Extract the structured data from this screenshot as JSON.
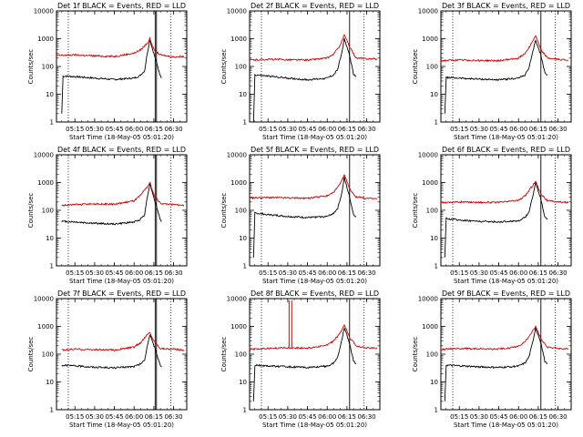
{
  "chart_data": [
    {
      "type": "line",
      "title": "Det 1f BLACK = Events, RED = LLD",
      "xlabel": "Start Time (18-May-05 05:01:20)",
      "ylabel": "Counts/sec",
      "yscale": "log",
      "ylim": [
        1,
        10000
      ],
      "xlim": [
        "05:01",
        "06:40"
      ],
      "x_ticks": [
        "05:15",
        "05:30",
        "05:45",
        "06:00",
        "06:15",
        "06:30"
      ],
      "y_ticks": [
        "1",
        "10",
        "100",
        "1000",
        "10000"
      ],
      "events_start": "05:05",
      "vlines_dotted": [
        "05:10",
        "06:28"
      ],
      "vlines_solid": [
        "06:16",
        "06:17"
      ],
      "grid": false,
      "legend": "none",
      "series": [
        {
          "name": "BLACK",
          "color": "#000000",
          "x": [
            "05:05",
            "05:06",
            "05:15",
            "05:30",
            "05:45",
            "06:00",
            "06:04",
            "06:08",
            "06:10",
            "06:12",
            "06:16",
            "06:20",
            "06:21"
          ],
          "values": [
            2,
            45,
            43,
            38,
            34,
            38,
            45,
            70,
            300,
            900,
            200,
            45,
            40
          ]
        },
        {
          "name": "RED",
          "color": "#cc0000",
          "x": [
            "05:01",
            "05:15",
            "05:30",
            "05:45",
            "06:00",
            "06:05",
            "06:10",
            "06:12",
            "06:15",
            "06:20",
            "06:30",
            "06:38"
          ],
          "values": [
            250,
            260,
            240,
            230,
            300,
            400,
            700,
            1000,
            400,
            260,
            220,
            230
          ]
        }
      ]
    },
    {
      "type": "line",
      "title": "Det 2f BLACK = Events, RED = LLD",
      "xlabel": "Start Time (18-May-05 05:01:20)",
      "ylabel": "Counts/sec",
      "yscale": "log",
      "ylim": [
        1,
        10000
      ],
      "xlim": [
        "05:01",
        "06:40"
      ],
      "x_ticks": [
        "05:15",
        "05:30",
        "05:45",
        "06:00",
        "06:15",
        "06:30"
      ],
      "y_ticks": [
        "1",
        "10",
        "100",
        "1000",
        "10000"
      ],
      "events_start": "05:04",
      "vlines_dotted": [
        "05:10",
        "06:28"
      ],
      "vlines_solid": [
        "06:17"
      ],
      "grid": false,
      "legend": "none",
      "series": [
        {
          "name": "BLACK",
          "color": "#000000",
          "x": [
            "05:04",
            "05:05",
            "05:15",
            "05:30",
            "05:45",
            "06:00",
            "06:05",
            "06:08",
            "06:11",
            "06:13",
            "06:17",
            "06:20",
            "06:22"
          ],
          "values": [
            1,
            50,
            45,
            38,
            33,
            38,
            50,
            80,
            300,
            1000,
            250,
            50,
            45
          ]
        },
        {
          "name": "RED",
          "color": "#cc0000",
          "x": [
            "05:01",
            "05:15",
            "05:30",
            "05:45",
            "06:00",
            "06:05",
            "06:10",
            "06:13",
            "06:17",
            "06:22",
            "06:30",
            "06:38"
          ],
          "values": [
            170,
            180,
            175,
            170,
            200,
            280,
            600,
            1400,
            500,
            200,
            190,
            185
          ]
        }
      ]
    },
    {
      "type": "line",
      "title": "Det 3f BLACK = Events, RED = LLD",
      "xlabel": "Start Time (18-May-05 05:01:20)",
      "ylabel": "Counts/sec",
      "yscale": "log",
      "ylim": [
        1,
        10000
      ],
      "xlim": [
        "05:01",
        "06:40"
      ],
      "x_ticks": [
        "05:15",
        "05:30",
        "05:45",
        "06:00",
        "06:15",
        "06:30"
      ],
      "y_ticks": [
        "1",
        "10",
        "100",
        "1000",
        "10000"
      ],
      "events_start": "05:04",
      "vlines_dotted": [
        "05:10",
        "06:28"
      ],
      "vlines_solid": [
        "06:17"
      ],
      "grid": false,
      "legend": "none",
      "series": [
        {
          "name": "BLACK",
          "color": "#000000",
          "x": [
            "05:04",
            "05:05",
            "05:15",
            "05:30",
            "05:45",
            "06:00",
            "06:05",
            "06:08",
            "06:11",
            "06:13",
            "06:17",
            "06:20",
            "06:22"
          ],
          "values": [
            2,
            40,
            38,
            35,
            33,
            38,
            50,
            90,
            350,
            900,
            250,
            60,
            50
          ]
        },
        {
          "name": "RED",
          "color": "#cc0000",
          "x": [
            "05:01",
            "05:15",
            "05:30",
            "05:45",
            "06:00",
            "06:05",
            "06:10",
            "06:13",
            "06:17",
            "06:22",
            "06:30",
            "06:38"
          ],
          "values": [
            160,
            170,
            165,
            160,
            200,
            300,
            700,
            1300,
            400,
            200,
            180,
            170
          ]
        }
      ]
    },
    {
      "type": "line",
      "title": "Det 4f BLACK = Events, RED = LLD",
      "xlabel": "Start Time (18-May-05 05:01:20)",
      "ylabel": "Counts/sec",
      "yscale": "log",
      "ylim": [
        1,
        10000
      ],
      "xlim": [
        "05:01",
        "06:40"
      ],
      "x_ticks": [
        "05:15",
        "05:30",
        "05:45",
        "06:00",
        "06:15",
        "06:30"
      ],
      "y_ticks": [
        "1",
        "10",
        "100",
        "1000",
        "10000"
      ],
      "events_start": "05:05",
      "vlines_dotted": [
        "05:10",
        "06:28"
      ],
      "vlines_solid": [
        "06:16",
        "06:17"
      ],
      "grid": false,
      "legend": "none",
      "series": [
        {
          "name": "BLACK",
          "color": "#000000",
          "x": [
            "05:05",
            "05:15",
            "05:30",
            "05:45",
            "06:00",
            "06:04",
            "06:08",
            "06:10",
            "06:12",
            "06:16",
            "06:20",
            "06:21"
          ],
          "values": [
            40,
            38,
            34,
            32,
            38,
            45,
            70,
            300,
            900,
            200,
            45,
            40
          ]
        },
        {
          "name": "RED",
          "color": "#cc0000",
          "x": [
            "05:05",
            "05:15",
            "05:30",
            "05:45",
            "06:00",
            "06:05",
            "06:10",
            "06:12",
            "06:15",
            "06:20",
            "06:30",
            "06:38"
          ],
          "values": [
            150,
            160,
            170,
            165,
            220,
            350,
            700,
            1000,
            350,
            180,
            160,
            150
          ]
        }
      ]
    },
    {
      "type": "line",
      "title": "Det 5f BLACK = Events, RED = LLD",
      "xlabel": "Start Time (18-May-05 05:01:20)",
      "ylabel": "Counts/sec",
      "yscale": "log",
      "ylim": [
        1,
        10000
      ],
      "xlim": [
        "05:01",
        "06:40"
      ],
      "x_ticks": [
        "05:15",
        "05:30",
        "05:45",
        "06:00",
        "06:15",
        "06:30"
      ],
      "y_ticks": [
        "1",
        "10",
        "100",
        "1000",
        "10000"
      ],
      "events_start": "05:04",
      "vlines_dotted": [
        "05:10",
        "06:28"
      ],
      "vlines_solid": [
        "06:17"
      ],
      "grid": false,
      "legend": "none",
      "series": [
        {
          "name": "BLACK",
          "color": "#000000",
          "x": [
            "05:04",
            "05:05",
            "05:15",
            "05:30",
            "05:45",
            "06:00",
            "06:05",
            "06:08",
            "06:11",
            "06:13",
            "06:17",
            "06:20",
            "06:22"
          ],
          "values": [
            2,
            80,
            70,
            60,
            55,
            60,
            80,
            120,
            400,
            1500,
            300,
            70,
            60
          ]
        },
        {
          "name": "RED",
          "color": "#cc0000",
          "x": [
            "05:01",
            "05:15",
            "05:30",
            "05:45",
            "06:00",
            "06:05",
            "06:10",
            "06:13",
            "06:17",
            "06:22",
            "06:30",
            "06:38"
          ],
          "values": [
            280,
            290,
            280,
            270,
            330,
            450,
            900,
            1900,
            600,
            300,
            270,
            260
          ]
        }
      ]
    },
    {
      "type": "line",
      "title": "Det 6f BLACK = Events, RED = LLD",
      "xlabel": "Start Time (18-May-05 05:01:20)",
      "ylabel": "Counts/sec",
      "yscale": "log",
      "ylim": [
        1,
        10000
      ],
      "xlim": [
        "05:01",
        "06:40"
      ],
      "x_ticks": [
        "05:15",
        "05:30",
        "05:45",
        "06:00",
        "06:15",
        "06:30"
      ],
      "y_ticks": [
        "1",
        "10",
        "100",
        "1000",
        "10000"
      ],
      "events_start": "05:04",
      "vlines_dotted": [
        "05:10",
        "06:28"
      ],
      "vlines_solid": [
        "06:17"
      ],
      "grid": false,
      "legend": "none",
      "series": [
        {
          "name": "BLACK",
          "color": "#000000",
          "x": [
            "05:04",
            "05:05",
            "05:15",
            "05:30",
            "05:45",
            "06:00",
            "06:05",
            "06:08",
            "06:11",
            "06:13",
            "06:17",
            "06:20",
            "06:22"
          ],
          "values": [
            2,
            50,
            45,
            40,
            38,
            42,
            55,
            90,
            350,
            1000,
            250,
            55,
            50
          ]
        },
        {
          "name": "RED",
          "color": "#cc0000",
          "x": [
            "05:01",
            "05:15",
            "05:30",
            "05:45",
            "06:00",
            "06:05",
            "06:10",
            "06:13",
            "06:17",
            "06:22",
            "06:30",
            "06:38"
          ],
          "values": [
            190,
            200,
            195,
            190,
            230,
            330,
            700,
            1100,
            400,
            220,
            200,
            190
          ]
        }
      ]
    },
    {
      "type": "line",
      "title": "Det 7f BLACK = Events, RED = LLD",
      "xlabel": "Start Time (18-May-05 05:01:20)",
      "ylabel": "Counts/sec",
      "yscale": "log",
      "ylim": [
        1,
        10000
      ],
      "xlim": [
        "05:01",
        "06:40"
      ],
      "x_ticks": [
        "05:15",
        "05:30",
        "05:45",
        "06:00",
        "06:15",
        "06:30"
      ],
      "y_ticks": [
        "1",
        "10",
        "100",
        "1000",
        "10000"
      ],
      "events_start": "05:05",
      "vlines_dotted": [
        "05:10",
        "06:28"
      ],
      "vlines_solid": [
        "06:16",
        "06:17"
      ],
      "grid": false,
      "legend": "none",
      "series": [
        {
          "name": "BLACK",
          "color": "#000000",
          "x": [
            "05:05",
            "05:15",
            "05:30",
            "05:45",
            "06:00",
            "06:04",
            "06:08",
            "06:10",
            "06:12",
            "06:16",
            "06:20",
            "06:21"
          ],
          "values": [
            40,
            38,
            34,
            32,
            36,
            42,
            60,
            200,
            500,
            150,
            40,
            35
          ]
        },
        {
          "name": "RED",
          "color": "#cc0000",
          "x": [
            "05:05",
            "05:15",
            "05:30",
            "05:45",
            "06:00",
            "06:05",
            "06:10",
            "06:12",
            "06:15",
            "06:20",
            "06:30",
            "06:38"
          ],
          "values": [
            140,
            150,
            145,
            140,
            180,
            260,
            500,
            600,
            300,
            160,
            150,
            140
          ]
        }
      ]
    },
    {
      "type": "line",
      "title": "Det 8f BLACK = Events, RED = LLD",
      "xlabel": "Start Time (18-May-05 05:01:20)",
      "ylabel": "Counts/sec",
      "yscale": "log",
      "ylim": [
        1,
        10000
      ],
      "xlim": [
        "05:01",
        "06:40"
      ],
      "x_ticks": [
        "05:15",
        "05:30",
        "05:45",
        "06:00",
        "06:15",
        "06:30"
      ],
      "y_ticks": [
        "1",
        "10",
        "100",
        "1000",
        "10000"
      ],
      "events_start": "05:04",
      "vlines_dotted": [
        "05:10",
        "06:28"
      ],
      "vlines_solid": [
        "06:17"
      ],
      "red_spikes": [
        "05:31",
        "05:33"
      ],
      "grid": false,
      "legend": "none",
      "series": [
        {
          "name": "BLACK",
          "color": "#000000",
          "x": [
            "05:04",
            "05:05",
            "05:15",
            "05:30",
            "05:45",
            "06:00",
            "06:05",
            "06:08",
            "06:11",
            "06:13",
            "06:17",
            "06:20",
            "06:22"
          ],
          "values": [
            2,
            40,
            38,
            35,
            33,
            37,
            48,
            80,
            300,
            900,
            250,
            55,
            45
          ]
        },
        {
          "name": "RED",
          "color": "#cc0000",
          "x": [
            "05:01",
            "05:15",
            "05:30",
            "05:45",
            "06:00",
            "06:05",
            "06:10",
            "06:13",
            "06:17",
            "06:22",
            "06:30",
            "06:38"
          ],
          "values": [
            150,
            160,
            170,
            165,
            210,
            300,
            600,
            1100,
            400,
            200,
            170,
            160
          ]
        }
      ]
    },
    {
      "type": "line",
      "title": "Det 9f BLACK = Events, RED = LLD",
      "xlabel": "Start Time (18-May-05 05:01:20)",
      "ylabel": "Counts/sec",
      "yscale": "log",
      "ylim": [
        1,
        10000
      ],
      "xlim": [
        "05:01",
        "06:40"
      ],
      "x_ticks": [
        "05:15",
        "05:30",
        "05:45",
        "06:00",
        "06:15",
        "06:30"
      ],
      "y_ticks": [
        "1",
        "10",
        "100",
        "1000",
        "10000"
      ],
      "events_start": "05:04",
      "vlines_dotted": [
        "05:10",
        "06:28"
      ],
      "vlines_solid": [
        "06:17"
      ],
      "grid": false,
      "legend": "none",
      "series": [
        {
          "name": "BLACK",
          "color": "#000000",
          "x": [
            "05:04",
            "05:05",
            "05:15",
            "05:30",
            "05:45",
            "06:00",
            "06:05",
            "06:08",
            "06:11",
            "06:13",
            "06:17",
            "06:20",
            "06:22"
          ],
          "values": [
            2,
            40,
            38,
            35,
            33,
            37,
            48,
            80,
            300,
            900,
            250,
            55,
            45
          ]
        },
        {
          "name": "RED",
          "color": "#cc0000",
          "x": [
            "05:01",
            "05:15",
            "05:30",
            "05:45",
            "06:00",
            "06:05",
            "06:10",
            "06:13",
            "06:17",
            "06:22",
            "06:30",
            "06:38"
          ],
          "values": [
            150,
            160,
            155,
            150,
            190,
            280,
            600,
            1000,
            350,
            180,
            160,
            150
          ]
        }
      ]
    }
  ]
}
